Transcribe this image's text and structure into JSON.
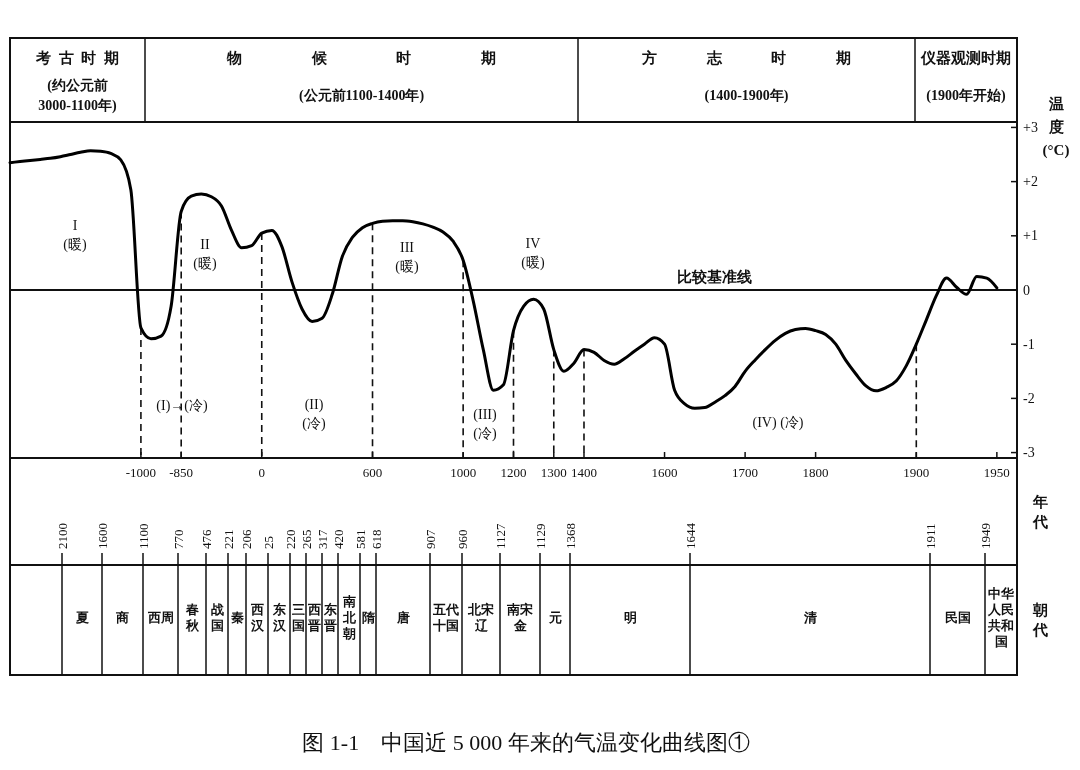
{
  "chart_data": [
    {
      "type": "other",
      "categories": [
        "考古时期",
        "物候时期",
        "方志时期",
        "仪器观测时期"
      ],
      "annotations": [
        "(约公元前3000-1100年)",
        "(公元前1100-1400年)",
        "(1400-1900年)",
        "(1900年开始)"
      ]
    },
    {
      "type": "line",
      "categories": [
        null,
        null,
        null,
        null,
        null,
        null,
        null,
        null,
        null,
        null,
        null,
        null,
        null,
        "-1000",
        null,
        null,
        null,
        "-850",
        null,
        null,
        null,
        null,
        null,
        null,
        null,
        "0",
        null,
        null,
        null,
        null,
        null,
        null,
        null,
        null,
        null,
        null,
        "600",
        null,
        null,
        null,
        null,
        null,
        null,
        null,
        null,
        "1000",
        null,
        null,
        null,
        null,
        "1200",
        null,
        null,
        null,
        "1300",
        null,
        null,
        "1400",
        null,
        null,
        null,
        null,
        null,
        null,
        null,
        "1600",
        null,
        null,
        null,
        null,
        null,
        null,
        null,
        "1700",
        null,
        null,
        null,
        null,
        null,
        null,
        "1800",
        null,
        null,
        null,
        null,
        null,
        null,
        null,
        null,
        null,
        "1900",
        null,
        null,
        null,
        null,
        null,
        null,
        null,
        "1950",
        null,
        null
      ],
      "values": [
        2.35,
        2.37,
        2.39,
        2.41,
        2.43,
        2.46,
        2.5,
        2.54,
        2.57,
        2.56,
        2.52,
        2.4,
        1.85,
        -0.7,
        -0.9,
        -0.85,
        -0.3,
        1.45,
        1.73,
        1.77,
        1.72,
        1.55,
        1.1,
        0.78,
        0.82,
        1.05,
        1.1,
        0.8,
        0.15,
        -0.35,
        -0.58,
        -0.52,
        -0.08,
        0.62,
        0.97,
        1.15,
        1.23,
        1.27,
        1.28,
        1.28,
        1.26,
        1.22,
        1.16,
        1.07,
        0.9,
        0.55,
        -0.2,
        -1.1,
        -1.85,
        -1.75,
        -0.75,
        -0.3,
        -0.17,
        -0.35,
        -1.1,
        -1.5,
        -1.35,
        -1.1,
        -1.15,
        -1.3,
        -1.37,
        -1.27,
        -1.13,
        -1.0,
        -0.88,
        -1.0,
        -1.85,
        -2.1,
        -2.18,
        -2.17,
        -2.07,
        -1.95,
        -1.78,
        -1.5,
        -1.29,
        -1.1,
        -0.93,
        -0.8,
        -0.73,
        -0.71,
        -0.75,
        -0.82,
        -1.0,
        -1.3,
        -1.55,
        -1.77,
        -1.86,
        -1.8,
        -1.68,
        -1.4,
        -1.0,
        -0.55,
        -0.1,
        0.22,
        0.05,
        -0.08,
        0.25,
        0.22,
        0.04,
        null,
        null
      ],
      "color": "#000000",
      "ylim": [
        -3.1,
        3.1
      ],
      "yticks": [
        {
          "value": 3,
          "label": "+3"
        },
        {
          "value": 2,
          "label": "+2"
        },
        {
          "value": 1,
          "label": "+1"
        },
        0,
        -1,
        -2,
        -3
      ],
      "ylabel": "温度(°C)",
      "ref_lines": [
        {
          "axis": "y",
          "value": 0,
          "label": "比较基准线"
        },
        {
          "axis": "x",
          "value": "-1000",
          "line_style": "dashed"
        },
        {
          "axis": "x",
          "value": "-850",
          "line_style": "dashed"
        },
        {
          "axis": "x",
          "value": "0",
          "line_style": "dashed"
        },
        {
          "axis": "x",
          "value": "600",
          "line_style": "dashed"
        },
        {
          "axis": "x",
          "value": "1000",
          "line_style": "dashed"
        },
        {
          "axis": "x",
          "value": "1200",
          "line_style": "dashed"
        },
        {
          "axis": "x",
          "value": "1300",
          "line_style": "dashed"
        },
        {
          "axis": "x",
          "value": "1400",
          "line_style": "dashed"
        },
        {
          "axis": "x",
          "value": "1900",
          "line_style": "dashed"
        }
      ],
      "annotations": [
        "I\n(暖)",
        "II\n(暖)",
        "III\n(暖)",
        "IV\n(暖)",
        "(I)→(冷)",
        "(II)\n(冷)",
        "(III)\n(冷)",
        "(IV) (冷)"
      ]
    },
    {
      "type": "other",
      "categories": [
        "夏",
        "商",
        "西周",
        "春秋",
        "战国",
        "秦",
        "西汉",
        "东汉",
        "三国",
        "西晋",
        "东晋",
        "南北朝",
        "隋",
        "唐",
        "五代十国",
        "北宋辽",
        "南宋金",
        "元",
        "明",
        "清",
        "民国",
        "中华人民共和国"
      ],
      "annotations": [
        "2100",
        "1600",
        "1100",
        "770",
        "476",
        "221",
        "206",
        "25",
        "220",
        "265",
        "317",
        "420",
        "581",
        "618",
        "907",
        "960",
        "1127",
        "1129",
        "1368",
        "1644",
        "1911",
        "1949"
      ],
      "xlabel": "年代",
      "ylabel": "朝代",
      "title": "图 1-1　中国近 5 000 年来的气温变化曲线图①"
    }
  ]
}
